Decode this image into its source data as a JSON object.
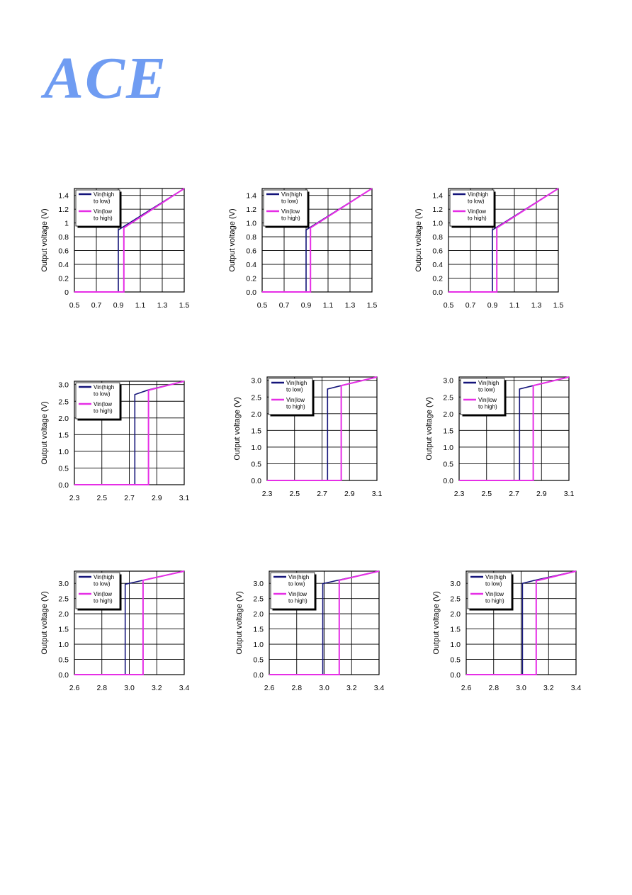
{
  "logo": {
    "text": "ACE"
  },
  "colors": {
    "series_high_to_low": "#14147a",
    "series_low_to_high": "#e62ee6",
    "logo": "#6f9cf2"
  },
  "chart_data": [
    {
      "type": "line",
      "ylabel": "Output voltage (V)",
      "xlim": [
        0.5,
        1.5
      ],
      "ylim": [
        0,
        1.5
      ],
      "xticks": [
        "0.5",
        "0.7",
        "0.9",
        "1.1",
        "1.3",
        "1.5"
      ],
      "yticks": [
        "0",
        "0.2",
        "0.4",
        "0.6",
        "0.8",
        "1",
        "1.2",
        "1.4"
      ],
      "grid": true,
      "legend_position": "top-left",
      "series": [
        {
          "name": "Vin(high to low)",
          "x": [
            0.5,
            0.9,
            0.9,
            0.95,
            1.5
          ],
          "y": [
            0,
            0,
            0.9,
            0.95,
            1.5
          ]
        },
        {
          "name": "Vin(low to high)",
          "x": [
            0.5,
            0.95,
            0.95,
            1.5
          ],
          "y": [
            0,
            0,
            0.93,
            1.5
          ]
        }
      ]
    },
    {
      "type": "line",
      "ylabel": "Output voltage (V)",
      "xlim": [
        0.5,
        1.5
      ],
      "ylim": [
        0,
        1.5
      ],
      "xticks": [
        "0.5",
        "0.7",
        "0.9",
        "1.1",
        "1.3",
        "1.5"
      ],
      "yticks": [
        "0.0",
        "0.2",
        "0.4",
        "0.6",
        "0.8",
        "1.0",
        "1.2",
        "1.4"
      ],
      "grid": true,
      "legend_position": "top-left",
      "series": [
        {
          "name": "Vin(high to low)",
          "x": [
            0.5,
            0.9,
            0.9,
            0.95,
            1.5
          ],
          "y": [
            0,
            0,
            0.9,
            0.95,
            1.5
          ]
        },
        {
          "name": "Vin(low to high)",
          "x": [
            0.5,
            0.94,
            0.94,
            1.5
          ],
          "y": [
            0,
            0,
            0.93,
            1.5
          ]
        }
      ]
    },
    {
      "type": "line",
      "ylabel": "Output voltage (V)",
      "xlim": [
        0.5,
        1.5
      ],
      "ylim": [
        0,
        1.5
      ],
      "xticks": [
        "0.5",
        "0.7",
        "0.9",
        "1.1",
        "1.3",
        "1.5"
      ],
      "yticks": [
        "0.0",
        "0.2",
        "0.4",
        "0.6",
        "0.8",
        "1.0",
        "1.2",
        "1.4"
      ],
      "grid": true,
      "legend_position": "top-left",
      "series": [
        {
          "name": "Vin(high to low)",
          "x": [
            0.5,
            0.9,
            0.9,
            0.95,
            1.5
          ],
          "y": [
            0,
            0,
            0.9,
            0.95,
            1.5
          ]
        },
        {
          "name": "Vin(low to high)",
          "x": [
            0.5,
            0.94,
            0.94,
            1.5
          ],
          "y": [
            0,
            0,
            0.93,
            1.5
          ]
        }
      ]
    },
    {
      "type": "line",
      "ylabel": "Output voltage (V)",
      "xlim": [
        2.3,
        3.1
      ],
      "ylim": [
        0,
        3.1
      ],
      "xticks": [
        "2.3",
        "2.5",
        "2.7",
        "2.9",
        "3.1"
      ],
      "yticks": [
        "0.0",
        "0.5",
        "1.0",
        "1.5",
        "2.0",
        "2.5",
        "3.0"
      ],
      "grid": true,
      "legend_position": "top-left",
      "series": [
        {
          "name": "Vin(high to low)",
          "x": [
            2.3,
            2.74,
            2.74,
            2.84,
            3.1
          ],
          "y": [
            0,
            0,
            2.7,
            2.84,
            3.1
          ]
        },
        {
          "name": "Vin(low to high)",
          "x": [
            2.3,
            2.84,
            2.84,
            3.1
          ],
          "y": [
            0,
            0,
            2.83,
            3.1
          ]
        }
      ]
    },
    {
      "type": "line",
      "ylabel": "Output voltage (V)",
      "xlim": [
        2.3,
        3.1
      ],
      "ylim": [
        0,
        3.1
      ],
      "xticks": [
        "2.3",
        "2.5",
        "2.7",
        "2.9",
        "3.1"
      ],
      "yticks": [
        "0.0",
        "0.5",
        "1.0",
        "1.5",
        "2.0",
        "2.5",
        "3.0"
      ],
      "grid": true,
      "legend_position": "top-left",
      "series": [
        {
          "name": "Vin(high to low)",
          "x": [
            2.3,
            2.74,
            2.74,
            2.84,
            3.1
          ],
          "y": [
            0,
            0,
            2.74,
            2.84,
            3.1
          ]
        },
        {
          "name": "Vin(low to high)",
          "x": [
            2.3,
            2.84,
            2.84,
            3.1
          ],
          "y": [
            0,
            0,
            2.84,
            3.1
          ]
        }
      ]
    },
    {
      "type": "line",
      "ylabel": "Output voltage (V)",
      "xlim": [
        2.3,
        3.1
      ],
      "ylim": [
        0,
        3.1
      ],
      "xticks": [
        "2.3",
        "2.5",
        "2.7",
        "2.9",
        "3.1"
      ],
      "yticks": [
        "0.0",
        "0.5",
        "1.0",
        "1.5",
        "2.0",
        "2.5",
        "3.0"
      ],
      "grid": true,
      "legend_position": "top-left",
      "series": [
        {
          "name": "Vin(high to low)",
          "x": [
            2.3,
            2.74,
            2.74,
            2.84,
            3.1
          ],
          "y": [
            0,
            0,
            2.74,
            2.84,
            3.1
          ]
        },
        {
          "name": "Vin(low to high)",
          "x": [
            2.3,
            2.84,
            2.84,
            3.1
          ],
          "y": [
            0,
            0,
            2.84,
            3.1
          ]
        }
      ]
    },
    {
      "type": "line",
      "ylabel": "Output voltage (V)",
      "xlim": [
        2.6,
        3.4
      ],
      "ylim": [
        0,
        3.4
      ],
      "xticks": [
        "2.6",
        "2.8",
        "3.0",
        "3.2",
        "3.4"
      ],
      "yticks": [
        "0.0",
        "0.5",
        "1.0",
        "1.5",
        "2.0",
        "2.5",
        "3.0"
      ],
      "grid": true,
      "legend_position": "top-left",
      "series": [
        {
          "name": "Vin(high to low)",
          "x": [
            2.6,
            2.97,
            2.97,
            3.1,
            3.4
          ],
          "y": [
            0,
            0,
            2.97,
            3.1,
            3.4
          ]
        },
        {
          "name": "Vin(low to high)",
          "x": [
            2.6,
            3.1,
            3.1,
            3.4
          ],
          "y": [
            0,
            0,
            3.1,
            3.4
          ]
        }
      ]
    },
    {
      "type": "line",
      "ylabel": "Output voltage (V)",
      "xlim": [
        2.6,
        3.4
      ],
      "ylim": [
        0,
        3.4
      ],
      "xticks": [
        "2.6",
        "2.8",
        "3.0",
        "3.2",
        "3.4"
      ],
      "yticks": [
        "0.0",
        "0.5",
        "1.0",
        "1.5",
        "2.0",
        "2.5",
        "3.0"
      ],
      "grid": true,
      "legend_position": "top-left",
      "series": [
        {
          "name": "Vin(high to low)",
          "x": [
            2.6,
            2.99,
            2.99,
            3.1,
            3.4
          ],
          "y": [
            0,
            0,
            2.99,
            3.1,
            3.4
          ]
        },
        {
          "name": "Vin(low to high)",
          "x": [
            2.6,
            3.11,
            3.11,
            3.4
          ],
          "y": [
            0,
            0,
            3.1,
            3.4
          ]
        }
      ]
    },
    {
      "type": "line",
      "ylabel": "Output voltage (V)",
      "xlim": [
        2.6,
        3.4
      ],
      "ylim": [
        0,
        3.4
      ],
      "xticks": [
        "2.6",
        "2.8",
        "3.0",
        "3.2",
        "3.4"
      ],
      "yticks": [
        "0.0",
        "0.5",
        "1.0",
        "1.5",
        "2.0",
        "2.5",
        "3.0"
      ],
      "grid": true,
      "legend_position": "top-left",
      "series": [
        {
          "name": "Vin(high to low)",
          "x": [
            2.6,
            3.01,
            3.01,
            3.1,
            3.4
          ],
          "y": [
            0,
            0,
            3.0,
            3.1,
            3.4
          ]
        },
        {
          "name": "Vin(low to high)",
          "x": [
            2.6,
            3.11,
            3.11,
            3.4
          ],
          "y": [
            0,
            0,
            3.08,
            3.4
          ]
        }
      ]
    }
  ]
}
